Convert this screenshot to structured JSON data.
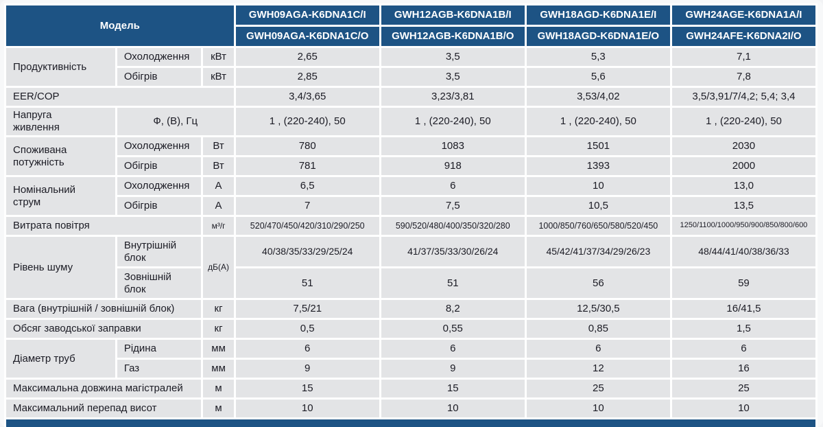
{
  "colors": {
    "header_bg": "#1d5384",
    "cell_bg": "#e3e4e6",
    "gap": "#ffffff",
    "text": "#1b1b24",
    "header_text": "#ffffff"
  },
  "table": {
    "model_header": "Модель",
    "models": [
      {
        "indoor": "GWH09AGA-K6DNA1C/I",
        "outdoor": "GWH09AGA-K6DNA1C/O"
      },
      {
        "indoor": "GWH12AGB-K6DNA1B/I",
        "outdoor": "GWH12AGB-K6DNA1B/O"
      },
      {
        "indoor": "GWH18AGD-K6DNA1E/I",
        "outdoor": "GWH18AGD-K6DNA1E/O"
      },
      {
        "indoor": "GWH24AGE-K6DNA1A/I",
        "outdoor": "GWH24AFE-K6DNA2I/O"
      }
    ],
    "rows": {
      "capacity": {
        "label": "Продуктивність",
        "cooling": {
          "label": "Охолодження",
          "unit": "кВт",
          "values": [
            "2,65",
            "3,5",
            "5,3",
            "7,1"
          ]
        },
        "heating": {
          "label": "Обігрів",
          "unit": "кВт",
          "values": [
            "2,85",
            "3,5",
            "5,6",
            "7,8"
          ]
        }
      },
      "eer_cop": {
        "label": "EER/COP",
        "values": [
          "3,4/3,65",
          "3,23/3,81",
          "3,53/4,02",
          "3,5/3,91/7/4,2; 5,4; 3,4"
        ]
      },
      "power_supply": {
        "label": "Напруга живлення",
        "unit": "Ф, (В), Гц",
        "values": [
          "1 , (220-240), 50",
          "1 , (220-240), 50",
          "1 , (220-240), 50",
          "1 , (220-240), 50"
        ]
      },
      "power_consumption": {
        "label": "Споживана потужність",
        "cooling": {
          "label": "Охолодження",
          "unit": "Вт",
          "values": [
            "780",
            "1083",
            "1501",
            "2030"
          ]
        },
        "heating": {
          "label": "Обігрів",
          "unit": "Вт",
          "values": [
            "781",
            "918",
            "1393",
            "2000"
          ]
        }
      },
      "rated_current": {
        "label": "Номінальний струм",
        "cooling": {
          "label": "Охолодження",
          "unit": "А",
          "values": [
            "6,5",
            "6",
            "10",
            "13,0"
          ]
        },
        "heating": {
          "label": "Обігрів",
          "unit": "А",
          "values": [
            "7",
            "7,5",
            "10,5",
            "13,5"
          ]
        }
      },
      "air_flow": {
        "label": "Витрата повітря",
        "unit": "м³/г",
        "values": [
          "520/470/450/420/310/290/250",
          "590/520/480/400/350/320/280",
          "1000/850/760/650/580/520/450",
          "1250/1100/1000/950/900/850/800/600"
        ]
      },
      "noise_level": {
        "label": "Рівень шуму",
        "unit": "дБ(А)",
        "indoor": {
          "label": "Внутрішній блок",
          "values": [
            "40/38/35/33/29/25/24",
            "41/37/35/33/30/26/24",
            "45/42/41/37/34/29/26/23",
            "48/44/41/40/38/36/33"
          ]
        },
        "outdoor": {
          "label": "Зовнішній блок",
          "values": [
            "51",
            "51",
            "56",
            "59"
          ]
        }
      },
      "weight": {
        "label": "Вага (внутрішній / зовнішній блок)",
        "unit": "кг",
        "values": [
          "7,5/21",
          "8,2",
          "12,5/30,5",
          "16/41,5"
        ]
      },
      "factory_charge": {
        "label": "Обсяг заводської заправки",
        "unit": "кг",
        "values": [
          "0,5",
          "0,55",
          "0,85",
          "1,5"
        ]
      },
      "pipe_diameter": {
        "label": "Діаметр труб",
        "liquid": {
          "label": "Рідина",
          "unit": "мм",
          "values": [
            "6",
            "6",
            "6",
            "6"
          ]
        },
        "gas": {
          "label": "Газ",
          "unit": "мм",
          "values": [
            "9",
            "9",
            "12",
            "16"
          ]
        }
      },
      "max_pipe_length": {
        "label": "Максимальна довжина магістралей",
        "unit": "м",
        "values": [
          "15",
          "15",
          "25",
          "25"
        ]
      },
      "max_height_diff": {
        "label": "Максимальний перепад висот",
        "unit": "м",
        "values": [
          "10",
          "10",
          "10",
          "10"
        ]
      }
    }
  }
}
